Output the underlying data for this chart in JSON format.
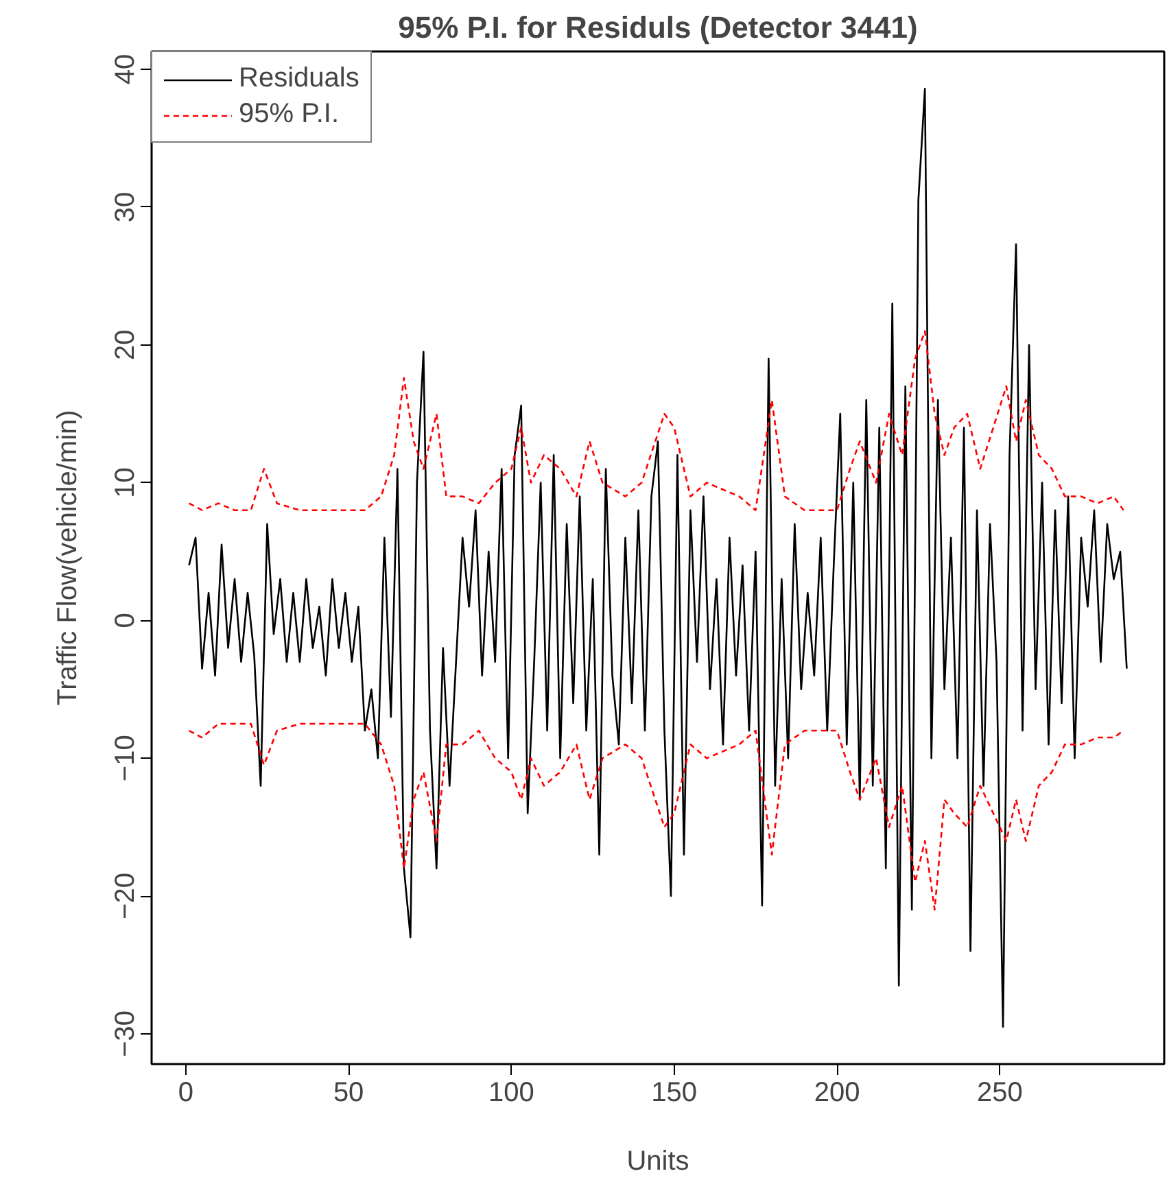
{
  "chart_data": {
    "type": "line",
    "title": "95% P.I. for Residuls (Detector 3441)",
    "xlabel": "Units",
    "ylabel": "Traffic Flow(vehicle/min)",
    "xlim": [
      -10.5,
      300.5
    ],
    "ylim": [
      -32.2,
      41.3
    ],
    "xticks": [
      0,
      50,
      100,
      150,
      200,
      250
    ],
    "yticks": [
      -30,
      -20,
      -10,
      0,
      10,
      20,
      30,
      40
    ],
    "grid": false,
    "legend": "top left",
    "series": [
      {
        "name": "Residuals",
        "color": "#000000",
        "line_style": "solid",
        "x": [
          1,
          3,
          5,
          7,
          9,
          11,
          13,
          15,
          17,
          19,
          21,
          23,
          25,
          27,
          29,
          31,
          33,
          35,
          37,
          39,
          41,
          43,
          45,
          47,
          49,
          51,
          53,
          55,
          57,
          59,
          61,
          63,
          65,
          67,
          69,
          71,
          73,
          75,
          77,
          79,
          81,
          83,
          85,
          87,
          89,
          91,
          93,
          95,
          97,
          99,
          101,
          103,
          105,
          107,
          109,
          111,
          113,
          115,
          117,
          119,
          121,
          123,
          125,
          127,
          129,
          131,
          133,
          135,
          137,
          139,
          141,
          143,
          145,
          147,
          149,
          151,
          153,
          155,
          157,
          159,
          161,
          163,
          165,
          167,
          169,
          171,
          173,
          175,
          177,
          179,
          181,
          183,
          185,
          187,
          189,
          191,
          193,
          195,
          197,
          199,
          201,
          203,
          205,
          207,
          209,
          211,
          213,
          215,
          217,
          219,
          221,
          223,
          225,
          227,
          229,
          231,
          233,
          235,
          237,
          239,
          241,
          243,
          245,
          247,
          249,
          251,
          253,
          255,
          257,
          259,
          261,
          263,
          265,
          267,
          269,
          271,
          273,
          275,
          277,
          279,
          281,
          283,
          285,
          287,
          289
        ],
        "values": [
          4,
          6,
          -3.5,
          2,
          -4,
          5.5,
          -2,
          3,
          -3,
          2,
          -2.5,
          -12,
          7,
          -1,
          3,
          -3,
          2,
          -3,
          3,
          -2,
          1,
          -4,
          3,
          -2,
          2,
          -3,
          1,
          -8,
          -5,
          -10,
          6,
          -7,
          11,
          -18,
          -23,
          10,
          19.5,
          -8,
          -18,
          -2,
          -12,
          -3,
          6,
          1,
          8,
          -4,
          5,
          -3,
          11,
          -10,
          12,
          15.6,
          -14,
          -3,
          10,
          -8,
          12,
          -10,
          7,
          -6,
          9,
          -8,
          3,
          -17,
          11,
          -4,
          -9,
          6,
          -6,
          8,
          -8,
          9,
          13,
          -8,
          -20,
          12,
          -17,
          8,
          -3,
          9,
          -5,
          3,
          -9,
          6,
          -4,
          4,
          -8,
          5,
          -20.7,
          19,
          -12,
          3,
          -10,
          7,
          -5,
          2,
          -4,
          6,
          -8,
          4,
          15,
          -9,
          10,
          -13,
          16,
          -12,
          14,
          -18,
          23,
          -26.5,
          17,
          -21,
          30.5,
          38.6,
          -10,
          16,
          -5,
          6,
          -10,
          14,
          -24,
          8,
          -12,
          7,
          -3,
          -29.5,
          12,
          27.3,
          -8,
          20,
          -5,
          10,
          -9,
          8,
          -6,
          9,
          -10,
          6,
          1,
          8,
          -3,
          7,
          3,
          5,
          -3.5
        ]
      },
      {
        "name": "95% P.I.",
        "color": "#ff0000",
        "line_style": "dashed",
        "x": [
          1,
          5,
          10,
          15,
          20,
          24,
          28,
          35,
          45,
          55,
          60,
          64,
          67,
          70,
          73,
          77,
          80,
          85,
          90,
          95,
          100,
          103,
          106,
          110,
          115,
          120,
          124,
          128,
          135,
          140,
          147,
          150,
          155,
          160,
          170,
          175,
          180,
          184,
          190,
          200,
          204,
          207,
          212,
          216,
          220,
          224,
          227,
          230,
          233,
          236,
          240,
          244,
          248,
          252,
          255,
          258,
          262,
          266,
          270,
          275,
          280,
          285,
          288
        ],
        "values": [
          8.5,
          8,
          8.5,
          8,
          8,
          11,
          8.5,
          8,
          8,
          8,
          9,
          12,
          17.6,
          13,
          11,
          15,
          9,
          9,
          8.5,
          10,
          11,
          14,
          10,
          12,
          11,
          9,
          13,
          10,
          9,
          10,
          15,
          14,
          9,
          10,
          9,
          8,
          16,
          9,
          8,
          8,
          11,
          13,
          10,
          15,
          12,
          19,
          21,
          15,
          12,
          14,
          15,
          11,
          14,
          17,
          13,
          16,
          12,
          11,
          9,
          9,
          8.5,
          9,
          8
        ]
      },
      {
        "color": "#ff0000",
        "line_style": "dashed",
        "x": [
          1,
          5,
          10,
          15,
          20,
          24,
          28,
          35,
          45,
          55,
          60,
          64,
          67,
          70,
          73,
          77,
          80,
          85,
          90,
          95,
          100,
          103,
          106,
          110,
          115,
          120,
          124,
          128,
          135,
          140,
          147,
          150,
          155,
          160,
          170,
          175,
          180,
          184,
          190,
          200,
          204,
          207,
          212,
          216,
          220,
          224,
          227,
          230,
          233,
          236,
          240,
          244,
          248,
          252,
          255,
          258,
          262,
          266,
          270,
          275,
          280,
          285,
          288
        ],
        "values": [
          -8,
          -8.5,
          -7.5,
          -7.5,
          -7.5,
          -10.5,
          -8,
          -7.5,
          -7.5,
          -7.5,
          -9,
          -12,
          -18,
          -13,
          -11,
          -16,
          -9,
          -9,
          -8,
          -10,
          -11,
          -13,
          -10,
          -12,
          -11,
          -9,
          -13,
          -10,
          -9,
          -10,
          -15,
          -14,
          -9,
          -10,
          -9,
          -8,
          -17,
          -9,
          -8,
          -8,
          -11,
          -13,
          -10,
          -15,
          -12,
          -19,
          -16,
          -21,
          -13,
          -14,
          -15,
          -12,
          -14,
          -16,
          -13,
          -16,
          -12,
          -11,
          -9,
          -9,
          -8.5,
          -8.5,
          -8
        ]
      }
    ]
  }
}
